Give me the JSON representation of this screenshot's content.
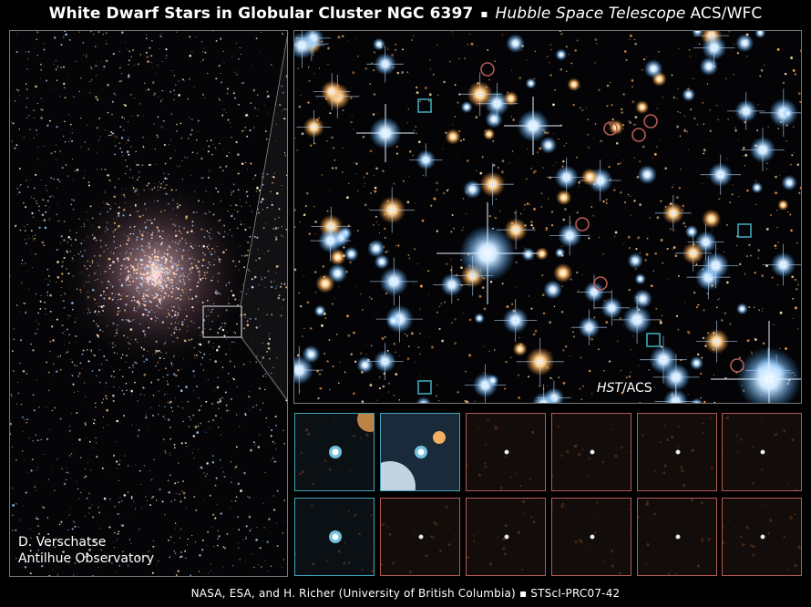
{
  "header": {
    "title_bold": "White Dwarf Stars in Globular Cluster NGC 6397",
    "separator": "▪",
    "title_italic": "Hubble Space Telescope",
    "title_rest": "ACS/WFC"
  },
  "left_panel": {
    "credit_line1": "D. Verschatse",
    "credit_line2": "Antilhue Observatory"
  },
  "main_panel": {
    "label_italic": "HST",
    "label_rest": "/ACS"
  },
  "thumbnails": {
    "row1": [
      "blue",
      "blue",
      "red",
      "red",
      "red",
      "red"
    ],
    "row2": [
      "blue",
      "red",
      "red",
      "red",
      "red",
      "red"
    ]
  },
  "footer": {
    "text": "NASA, ESA, and H. Richer (University of British Columbia) ▪ STScI-PRC07-42"
  },
  "colors": {
    "white_dwarf_marker": "#3fa6b8",
    "brown_dwarf_marker": "#b55a54",
    "background": "#000000"
  }
}
